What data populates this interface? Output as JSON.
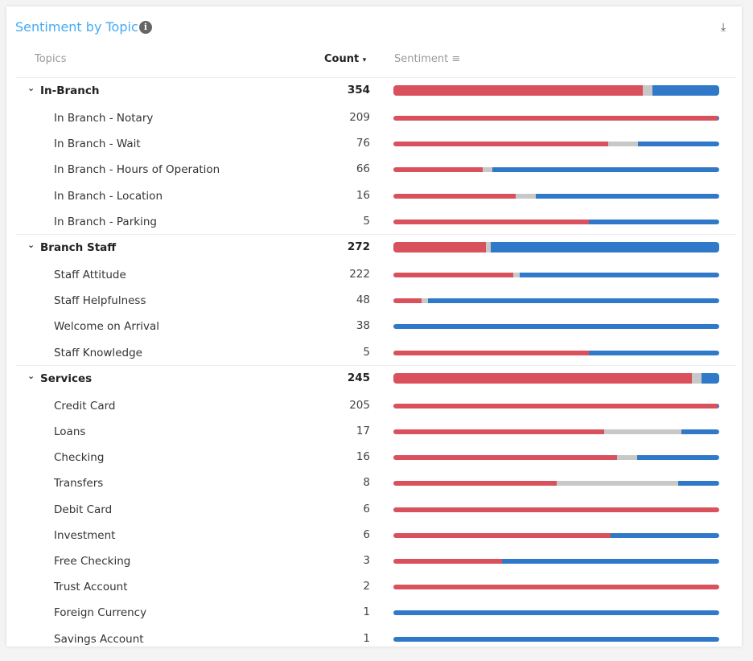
{
  "header": {
    "title": "Sentiment by Topic",
    "info_icon": "info-icon",
    "download_icon": "download-icon"
  },
  "columns": {
    "topics": "Topics",
    "count": "Count",
    "count_sort": "▾",
    "sentiment": "Sentiment",
    "sentiment_icon": "sort-lines-icon"
  },
  "colors": {
    "negative": "#d9515c",
    "neutral": "#c8c8c8",
    "positive": "#3079c9",
    "title": "#44aaf2"
  },
  "chart_data": {
    "type": "bar",
    "stacked": true,
    "orientation": "horizontal",
    "note_segments": [
      "negative",
      "neutral",
      "positive"
    ],
    "groups": [
      {
        "topic": "In-Branch",
        "count": 354,
        "sentiment": [
          0.766,
          0.029,
          0.205
        ],
        "children": [
          {
            "topic": "In Branch - Notary",
            "count": 209,
            "sentiment": [
              0.995,
              0,
              0.005
            ]
          },
          {
            "topic": "In Branch - Wait",
            "count": 76,
            "sentiment": [
              0.659,
              0.091,
              0.25
            ]
          },
          {
            "topic": "In Branch - Hours of Operation",
            "count": 66,
            "sentiment": [
              0.274,
              0.029,
              0.697
            ]
          },
          {
            "topic": "In Branch - Location",
            "count": 16,
            "sentiment": [
              0.376,
              0.061,
              0.563
            ]
          },
          {
            "topic": "In Branch - Parking",
            "count": 5,
            "sentiment": [
              0.6,
              0,
              0.4
            ]
          }
        ]
      },
      {
        "topic": "Branch Staff",
        "count": 272,
        "sentiment": [
          0.284,
          0.016,
          0.7
        ],
        "children": [
          {
            "topic": "Staff Attitude",
            "count": 222,
            "sentiment": [
              0.367,
              0.02,
              0.613
            ]
          },
          {
            "topic": "Staff Helpfulness",
            "count": 48,
            "sentiment": [
              0.086,
              0.019,
              0.895
            ]
          },
          {
            "topic": "Welcome on Arrival",
            "count": 38,
            "sentiment": [
              0,
              0,
              1
            ]
          },
          {
            "topic": "Staff Knowledge",
            "count": 5,
            "sentiment": [
              0.6,
              0,
              0.4
            ]
          }
        ]
      },
      {
        "topic": "Services",
        "count": 245,
        "sentiment": [
          0.916,
          0.03,
          0.054
        ],
        "children": [
          {
            "topic": "Credit Card",
            "count": 205,
            "sentiment": [
              0.995,
              0,
              0.005
            ]
          },
          {
            "topic": "Loans",
            "count": 17,
            "sentiment": [
              0.647,
              0.237,
              0.116
            ]
          },
          {
            "topic": "Checking",
            "count": 16,
            "sentiment": [
              0.686,
              0.062,
              0.252
            ]
          },
          {
            "topic": "Transfers",
            "count": 8,
            "sentiment": [
              0.5,
              0.375,
              0.125
            ]
          },
          {
            "topic": "Debit Card",
            "count": 6,
            "sentiment": [
              1,
              0,
              0
            ]
          },
          {
            "topic": "Investment",
            "count": 6,
            "sentiment": [
              0.667,
              0,
              0.333
            ]
          },
          {
            "topic": "Free Checking",
            "count": 3,
            "sentiment": [
              0.333,
              0,
              0.667
            ]
          },
          {
            "topic": "Trust Account",
            "count": 2,
            "sentiment": [
              1,
              0,
              0
            ]
          },
          {
            "topic": "Foreign Currency",
            "count": 1,
            "sentiment": [
              0,
              0,
              1
            ]
          },
          {
            "topic": "Savings Account",
            "count": 1,
            "sentiment": [
              0,
              0,
              1
            ]
          }
        ]
      }
    ]
  }
}
